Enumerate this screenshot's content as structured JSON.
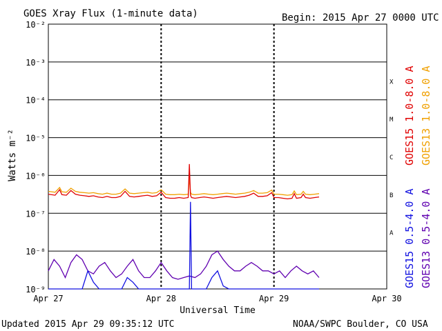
{
  "header": {
    "title": "GOES Xray Flux (1-minute data)",
    "begin": "Begin:  2015 Apr 27 0000 UTC"
  },
  "footer": {
    "updated": "Updated 2015 Apr 29 09:35:12 UTC",
    "credit": "NOAA/SWPC Boulder, CO USA"
  },
  "colors": {
    "goes15_long": "#e00000",
    "goes13_long": "#f0a000",
    "goes15_short": "#1010e0",
    "goes13_short": "#6000b0",
    "grid": "#000000"
  },
  "chart_data": {
    "type": "line",
    "title": "GOES Xray Flux (1-minute data)",
    "xlabel": "Universal Time",
    "ylabel": "Watts m⁻²",
    "y_scale": "log",
    "ylim": [
      1e-09,
      0.01
    ],
    "x_ticks": [
      "Apr 27",
      "Apr 28",
      "Apr 29",
      "Apr 30"
    ],
    "y_ticks": [
      "10⁻²",
      "10⁻³",
      "10⁻⁴",
      "10⁻⁵",
      "10⁻⁶",
      "10⁻⁷",
      "10⁻⁸",
      "10⁻⁹"
    ],
    "flare_classes": [
      "X",
      "M",
      "C",
      "B",
      "A"
    ],
    "series": [
      {
        "name": "GOES15 1.0-8.0 A",
        "x_days": [
          0.0,
          0.06,
          0.1,
          0.12,
          0.16,
          0.2,
          0.24,
          0.28,
          0.32,
          0.36,
          0.4,
          0.44,
          0.48,
          0.52,
          0.56,
          0.6,
          0.64,
          0.68,
          0.72,
          0.76,
          0.8,
          0.84,
          0.88,
          0.92,
          0.96,
          1.0,
          1.04,
          1.08,
          1.12,
          1.16,
          1.2,
          1.24,
          1.25,
          1.26,
          1.27,
          1.3,
          1.34,
          1.38,
          1.42,
          1.46,
          1.5,
          1.54,
          1.58,
          1.62,
          1.66,
          1.7,
          1.74,
          1.78,
          1.82,
          1.86,
          1.9,
          1.94,
          1.98,
          2.0,
          2.04,
          2.08,
          2.12,
          2.16,
          2.18,
          2.2,
          2.24,
          2.26,
          2.28,
          2.32,
          2.36,
          2.4
        ],
        "values": [
          3.2e-07,
          3e-07,
          4.2e-07,
          3.1e-07,
          3e-07,
          4e-07,
          3.2e-07,
          3e-07,
          2.9e-07,
          2.8e-07,
          2.9e-07,
          2.7e-07,
          2.6e-07,
          2.8e-07,
          2.6e-07,
          2.6e-07,
          2.8e-07,
          3.8e-07,
          2.8e-07,
          2.7e-07,
          2.8e-07,
          2.9e-07,
          3e-07,
          2.8e-07,
          2.9e-07,
          3.6e-07,
          2.6e-07,
          2.5e-07,
          2.5e-07,
          2.6e-07,
          2.5e-07,
          2.6e-07,
          2e-06,
          3e-07,
          2.6e-07,
          2.5e-07,
          2.6e-07,
          2.7e-07,
          2.6e-07,
          2.5e-07,
          2.6e-07,
          2.7e-07,
          2.8e-07,
          2.7e-07,
          2.6e-07,
          2.7e-07,
          2.8e-07,
          3e-07,
          3.4e-07,
          2.8e-07,
          2.8e-07,
          2.9e-07,
          3.5e-07,
          2.6e-07,
          2.6e-07,
          2.5e-07,
          2.4e-07,
          2.5e-07,
          3.3e-07,
          2.5e-07,
          2.6e-07,
          3.2e-07,
          2.6e-07,
          2.5e-07,
          2.6e-07,
          2.7e-07
        ]
      },
      {
        "name": "GOES13 1.0-8.0 A",
        "x_days": [
          0.0,
          0.06,
          0.1,
          0.12,
          0.16,
          0.2,
          0.24,
          0.28,
          0.32,
          0.36,
          0.4,
          0.44,
          0.48,
          0.52,
          0.56,
          0.6,
          0.64,
          0.68,
          0.72,
          0.76,
          0.8,
          0.84,
          0.88,
          0.92,
          0.96,
          1.0,
          1.04,
          1.08,
          1.12,
          1.16,
          1.2,
          1.24,
          1.25,
          1.26,
          1.27,
          1.3,
          1.34,
          1.38,
          1.42,
          1.46,
          1.5,
          1.54,
          1.58,
          1.62,
          1.66,
          1.7,
          1.74,
          1.78,
          1.82,
          1.86,
          1.9,
          1.94,
          1.98,
          2.0,
          2.04,
          2.08,
          2.12,
          2.16,
          2.18,
          2.2,
          2.24,
          2.26,
          2.28,
          2.32,
          2.36,
          2.4
        ],
        "values": [
          3.8e-07,
          3.6e-07,
          4.8e-07,
          3.7e-07,
          3.6e-07,
          4.6e-07,
          3.8e-07,
          3.6e-07,
          3.5e-07,
          3.4e-07,
          3.5e-07,
          3.3e-07,
          3.2e-07,
          3.4e-07,
          3.2e-07,
          3.2e-07,
          3.4e-07,
          4.4e-07,
          3.4e-07,
          3.3e-07,
          3.4e-07,
          3.5e-07,
          3.6e-07,
          3.4e-07,
          3.5e-07,
          4.2e-07,
          3.2e-07,
          3.1e-07,
          3.1e-07,
          3.2e-07,
          3.1e-07,
          3.2e-07,
          9e-07,
          3.6e-07,
          3.2e-07,
          3.1e-07,
          3.2e-07,
          3.3e-07,
          3.2e-07,
          3.1e-07,
          3.2e-07,
          3.3e-07,
          3.4e-07,
          3.3e-07,
          3.2e-07,
          3.3e-07,
          3.4e-07,
          3.6e-07,
          4e-07,
          3.4e-07,
          3.4e-07,
          3.5e-07,
          4.1e-07,
          3.2e-07,
          3.2e-07,
          3.1e-07,
          3e-07,
          3.1e-07,
          3.9e-07,
          3.1e-07,
          3.2e-07,
          3.8e-07,
          3.2e-07,
          3.1e-07,
          3.2e-07,
          3.3e-07
        ]
      },
      {
        "name": "GOES13 0.5-4.0 A",
        "x_days": [
          0.0,
          0.05,
          0.1,
          0.15,
          0.2,
          0.25,
          0.3,
          0.35,
          0.4,
          0.45,
          0.5,
          0.55,
          0.6,
          0.65,
          0.7,
          0.75,
          0.8,
          0.85,
          0.9,
          0.95,
          1.0,
          1.05,
          1.1,
          1.15,
          1.2,
          1.25,
          1.3,
          1.35,
          1.4,
          1.45,
          1.5,
          1.55,
          1.6,
          1.65,
          1.7,
          1.75,
          1.8,
          1.85,
          1.9,
          1.95,
          2.0,
          2.05,
          2.1,
          2.15,
          2.2,
          2.25,
          2.3,
          2.35,
          2.4
        ],
        "values": [
          3e-09,
          6e-09,
          4e-09,
          2e-09,
          5e-09,
          8e-09,
          6e-09,
          3e-09,
          2.5e-09,
          4e-09,
          5e-09,
          3e-09,
          2e-09,
          2.5e-09,
          4e-09,
          6e-09,
          3e-09,
          2e-09,
          2e-09,
          3e-09,
          5e-09,
          3e-09,
          2e-09,
          1.8e-09,
          2e-09,
          2.2e-09,
          2e-09,
          2.5e-09,
          4e-09,
          8e-09,
          1e-08,
          6e-09,
          4e-09,
          3e-09,
          3e-09,
          4e-09,
          5e-09,
          4e-09,
          3e-09,
          3e-09,
          2.5e-09,
          3e-09,
          2e-09,
          3e-09,
          4e-09,
          3e-09,
          2.5e-09,
          3e-09,
          2e-09
        ]
      },
      {
        "name": "GOES15 0.5-4.0 A",
        "x_days": [
          0.0,
          0.05,
          0.1,
          0.15,
          0.2,
          0.25,
          0.3,
          0.35,
          0.4,
          0.45,
          0.5,
          0.55,
          0.6,
          0.65,
          0.7,
          0.75,
          0.8,
          0.85,
          0.9,
          0.95,
          1.0,
          1.05,
          1.1,
          1.15,
          1.2,
          1.25,
          1.26,
          1.27,
          1.3,
          1.35,
          1.4,
          1.45,
          1.5,
          1.55,
          1.6,
          1.65,
          1.7,
          1.75,
          1.8,
          1.85,
          1.9,
          1.95,
          2.0,
          2.05,
          2.1,
          2.15,
          2.2,
          2.25,
          2.3,
          2.35,
          2.4
        ],
        "values": [
          1e-09,
          1e-09,
          1e-09,
          1e-09,
          1e-09,
          1e-09,
          1e-09,
          3e-09,
          1.5e-09,
          1e-09,
          1e-09,
          1e-09,
          1e-09,
          1e-09,
          2e-09,
          1.5e-09,
          1e-09,
          1e-09,
          1e-09,
          1e-09,
          1e-09,
          1e-09,
          1e-09,
          1e-09,
          1e-09,
          1e-09,
          2e-07,
          1e-09,
          1e-09,
          1e-09,
          1e-09,
          2e-09,
          3e-09,
          1.2e-09,
          1e-09,
          1e-09,
          1e-09,
          1e-09,
          1e-09,
          1e-09,
          1e-09,
          1e-09,
          1e-09,
          1e-09,
          1e-09,
          1e-09,
          1e-09,
          1e-09,
          1e-09,
          1e-09,
          1e-09
        ]
      }
    ]
  }
}
